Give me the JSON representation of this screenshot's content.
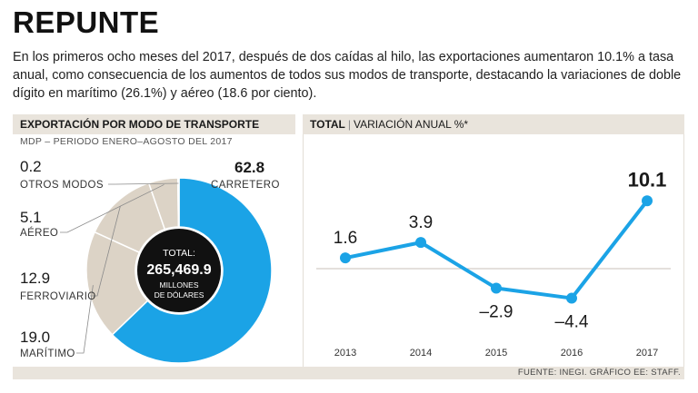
{
  "title": "REPUNTE",
  "intro": "En los primeros ocho meses del 2017, después de dos caídas al hilo, las exportaciones aumentaron 10.1% a tasa anual, como consecuencia de los aumentos de todos sus modos de transporte, destacando la variaciones de doble dígito en marítimo (26.1%) y aéreo (18.6 por ciento).",
  "left_panel": {
    "heading": "EXPORTACIÓN POR MODO DE TRANSPORTE",
    "subheading": "MDP – PERIODO ENERO–AGOSTO DEL 2017",
    "total_label": "TOTAL:",
    "total_value": "265,469.9",
    "total_unit_line1": "MILLONES",
    "total_unit_line2": "DE DÓLARES"
  },
  "right_panel": {
    "heading_bold": "TOTAL",
    "separator": "|",
    "heading_rest": "VARIACIÓN ANUAL %*"
  },
  "footer": "FUENTE: INEGI. GRÁFICO EE: STAFF.",
  "colors": {
    "accent": "#1ba3e6",
    "beige": "#dcd3c6",
    "center": "#111111",
    "panel": "#e9e4dc"
  },
  "chart_data": [
    {
      "type": "pie",
      "title": "EXPORTACIÓN POR MODO DE TRANSPORTE",
      "subtitle": "MDP – PERIODO ENERO–AGOSTO DEL 2017",
      "slices": [
        {
          "label": "CARRETERO",
          "value": 62.8,
          "display": "62.8"
        },
        {
          "label": "MARÍTIMO",
          "value": 19.0,
          "display": "19.0"
        },
        {
          "label": "FERROVIARIO",
          "value": 12.9,
          "display": "12.9"
        },
        {
          "label": "AÉREO",
          "value": 5.1,
          "display": "5.1"
        },
        {
          "label": "OTROS MODOS",
          "value": 0.2,
          "display": "0.2"
        }
      ]
    },
    {
      "type": "line",
      "title": "TOTAL | VARIACIÓN ANUAL %*",
      "x": [
        "2013",
        "2014",
        "2015",
        "2016",
        "2017"
      ],
      "values": [
        1.6,
        3.9,
        -2.9,
        -4.4,
        10.1
      ],
      "labels": [
        "1.6",
        "3.9",
        "–2.9",
        "–4.4",
        "10.1"
      ],
      "ylim": [
        -6,
        12
      ]
    }
  ]
}
